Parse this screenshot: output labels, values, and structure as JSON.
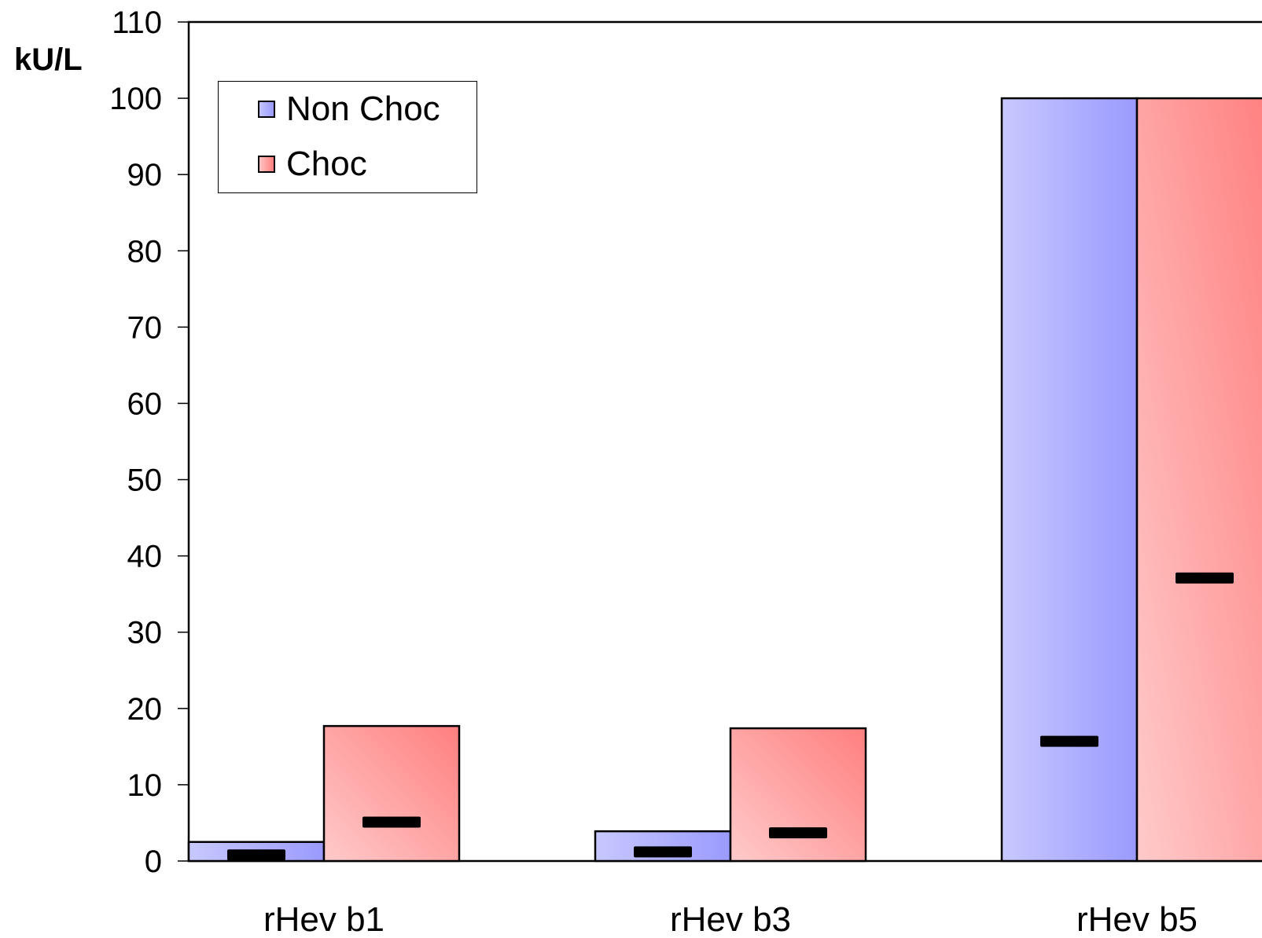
{
  "chart_data": {
    "type": "bar",
    "ylabel": "kU/L",
    "ylim": [
      0,
      110
    ],
    "yticks": [
      0,
      10,
      20,
      30,
      40,
      50,
      60,
      70,
      80,
      90,
      100,
      110
    ],
    "categories": [
      "rHev b1",
      "rHev b3",
      "rHev b5"
    ],
    "series": [
      {
        "name": "Non Choc",
        "values": [
          2.5,
          3.9,
          100
        ],
        "markers": [
          0.8,
          1.2,
          15.7
        ],
        "color": "#9a9aff"
      },
      {
        "name": "Choc",
        "values": [
          17.7,
          17.4,
          100
        ],
        "markers": [
          5.1,
          3.7,
          37.1
        ],
        "color": "#ff8080"
      }
    ],
    "legend": "top-left",
    "grid": false
  }
}
